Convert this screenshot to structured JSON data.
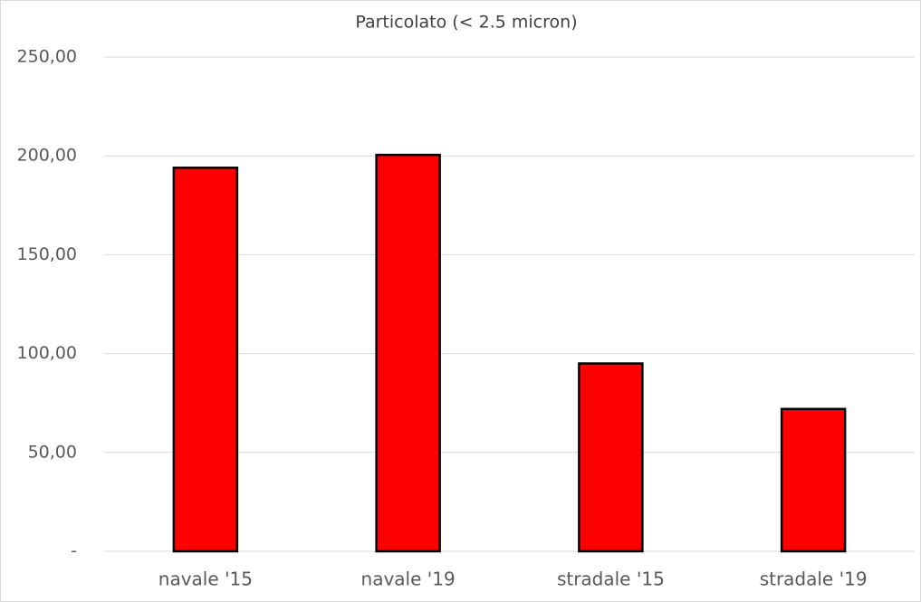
{
  "chart_data": {
    "type": "bar",
    "title": "Particolato (< 2.5 micron)",
    "categories": [
      "navale '15",
      "navale '19",
      "stradale '15",
      "stradale '19"
    ],
    "values": [
      194,
      200.5,
      95,
      72
    ],
    "color": "#ff0000",
    "edge_color": "#000000",
    "ylim": [
      0,
      250
    ],
    "yticks": [
      {
        "value": 0,
        "label": "-"
      },
      {
        "value": 50,
        "label": "50,00"
      },
      {
        "value": 100,
        "label": "100,00"
      },
      {
        "value": 150,
        "label": "150,00"
      },
      {
        "value": 200,
        "label": "200,00"
      },
      {
        "value": 250,
        "label": "250,00"
      }
    ],
    "grid": true
  }
}
